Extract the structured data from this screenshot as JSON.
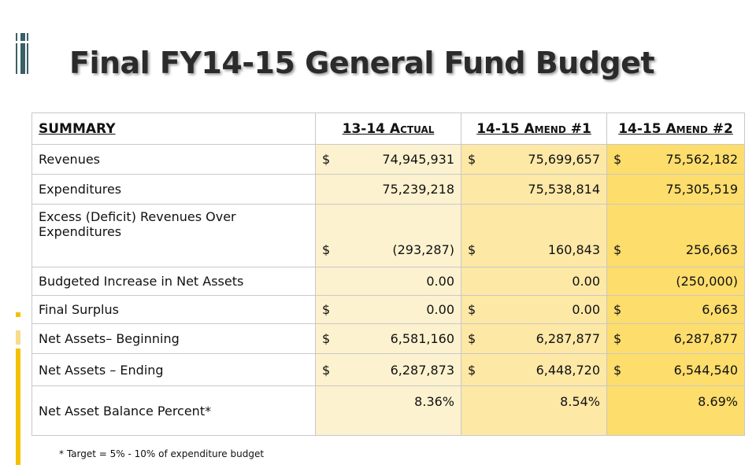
{
  "title": "Final FY14-15 General Fund Budget",
  "table": {
    "header": [
      "SUMMARY",
      "13-14 Actual",
      "14-15 Amend #1",
      "14-15 Amend #2"
    ],
    "rows": [
      {
        "label": "Revenues",
        "cells": [
          {
            "prefix": "$",
            "value": "74,945,931"
          },
          {
            "prefix": "$",
            "value": "75,699,657"
          },
          {
            "prefix": "$",
            "value": "75,562,182"
          }
        ]
      },
      {
        "label": "Expenditures",
        "cells": [
          {
            "value": "75,239,218"
          },
          {
            "value": "75,538,814"
          },
          {
            "value": "75,305,519"
          }
        ]
      },
      {
        "label": "Excess (Deficit) Revenues Over Expenditures",
        "cells": [
          {
            "prefix": "$",
            "value": "(293,287)"
          },
          {
            "prefix": "$",
            "value": "160,843"
          },
          {
            "prefix": "$",
            "value": "256,663"
          }
        ]
      },
      {
        "label": "Budgeted Increase in Net Assets",
        "cells": [
          {
            "value": "0.00"
          },
          {
            "value": "0.00"
          },
          {
            "value": "(250,000)"
          }
        ]
      },
      {
        "label": "Final Surplus",
        "cells": [
          {
            "prefix": "$",
            "value": "0.00"
          },
          {
            "prefix": "$",
            "value": "0.00"
          },
          {
            "prefix": "$",
            "value": "6,663"
          }
        ]
      },
      {
        "label": "Net Assets– Beginning",
        "cells": [
          {
            "prefix": "$",
            "value": "6,581,160"
          },
          {
            "prefix": "$",
            "value": "6,287,877"
          },
          {
            "prefix": "$",
            "value": "6,287,877"
          }
        ]
      },
      {
        "label": "Net Assets – Ending",
        "cells": [
          {
            "prefix": "$",
            "value": "6,287,873"
          },
          {
            "prefix": "$",
            "value": "6,448,720"
          },
          {
            "prefix": "$",
            "value": "6,544,540"
          }
        ]
      },
      {
        "label": "Net Asset Balance Percent*",
        "cells": [
          {
            "value": "8.36%"
          },
          {
            "value": "8.54%"
          },
          {
            "value": "8.69%"
          }
        ]
      }
    ]
  },
  "footnote": "* Target = 5% - 10% of expenditure budget"
}
